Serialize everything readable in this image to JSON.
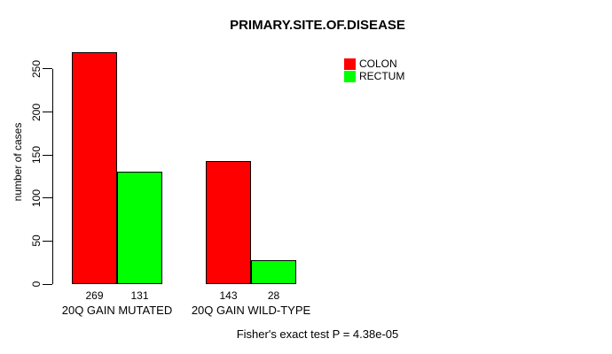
{
  "chart_data": {
    "type": "bar",
    "title": "PRIMARY.SITE.OF.DISEASE",
    "ylabel": "number of cases",
    "xlabel": "",
    "categories": [
      "20Q GAIN MUTATED",
      "20Q GAIN WILD-TYPE"
    ],
    "series": [
      {
        "name": "COLON",
        "color": "#FF0000",
        "values": [
          269,
          143
        ]
      },
      {
        "name": "RECTUM",
        "color": "#00FF00",
        "values": [
          131,
          28
        ]
      }
    ],
    "yticks": [
      0,
      50,
      100,
      150,
      200,
      250
    ],
    "ylim": [
      0,
      269
    ],
    "grid": false,
    "legend_position": "top-right",
    "annotation": "Fisher's exact test P = 4.38e-05"
  }
}
